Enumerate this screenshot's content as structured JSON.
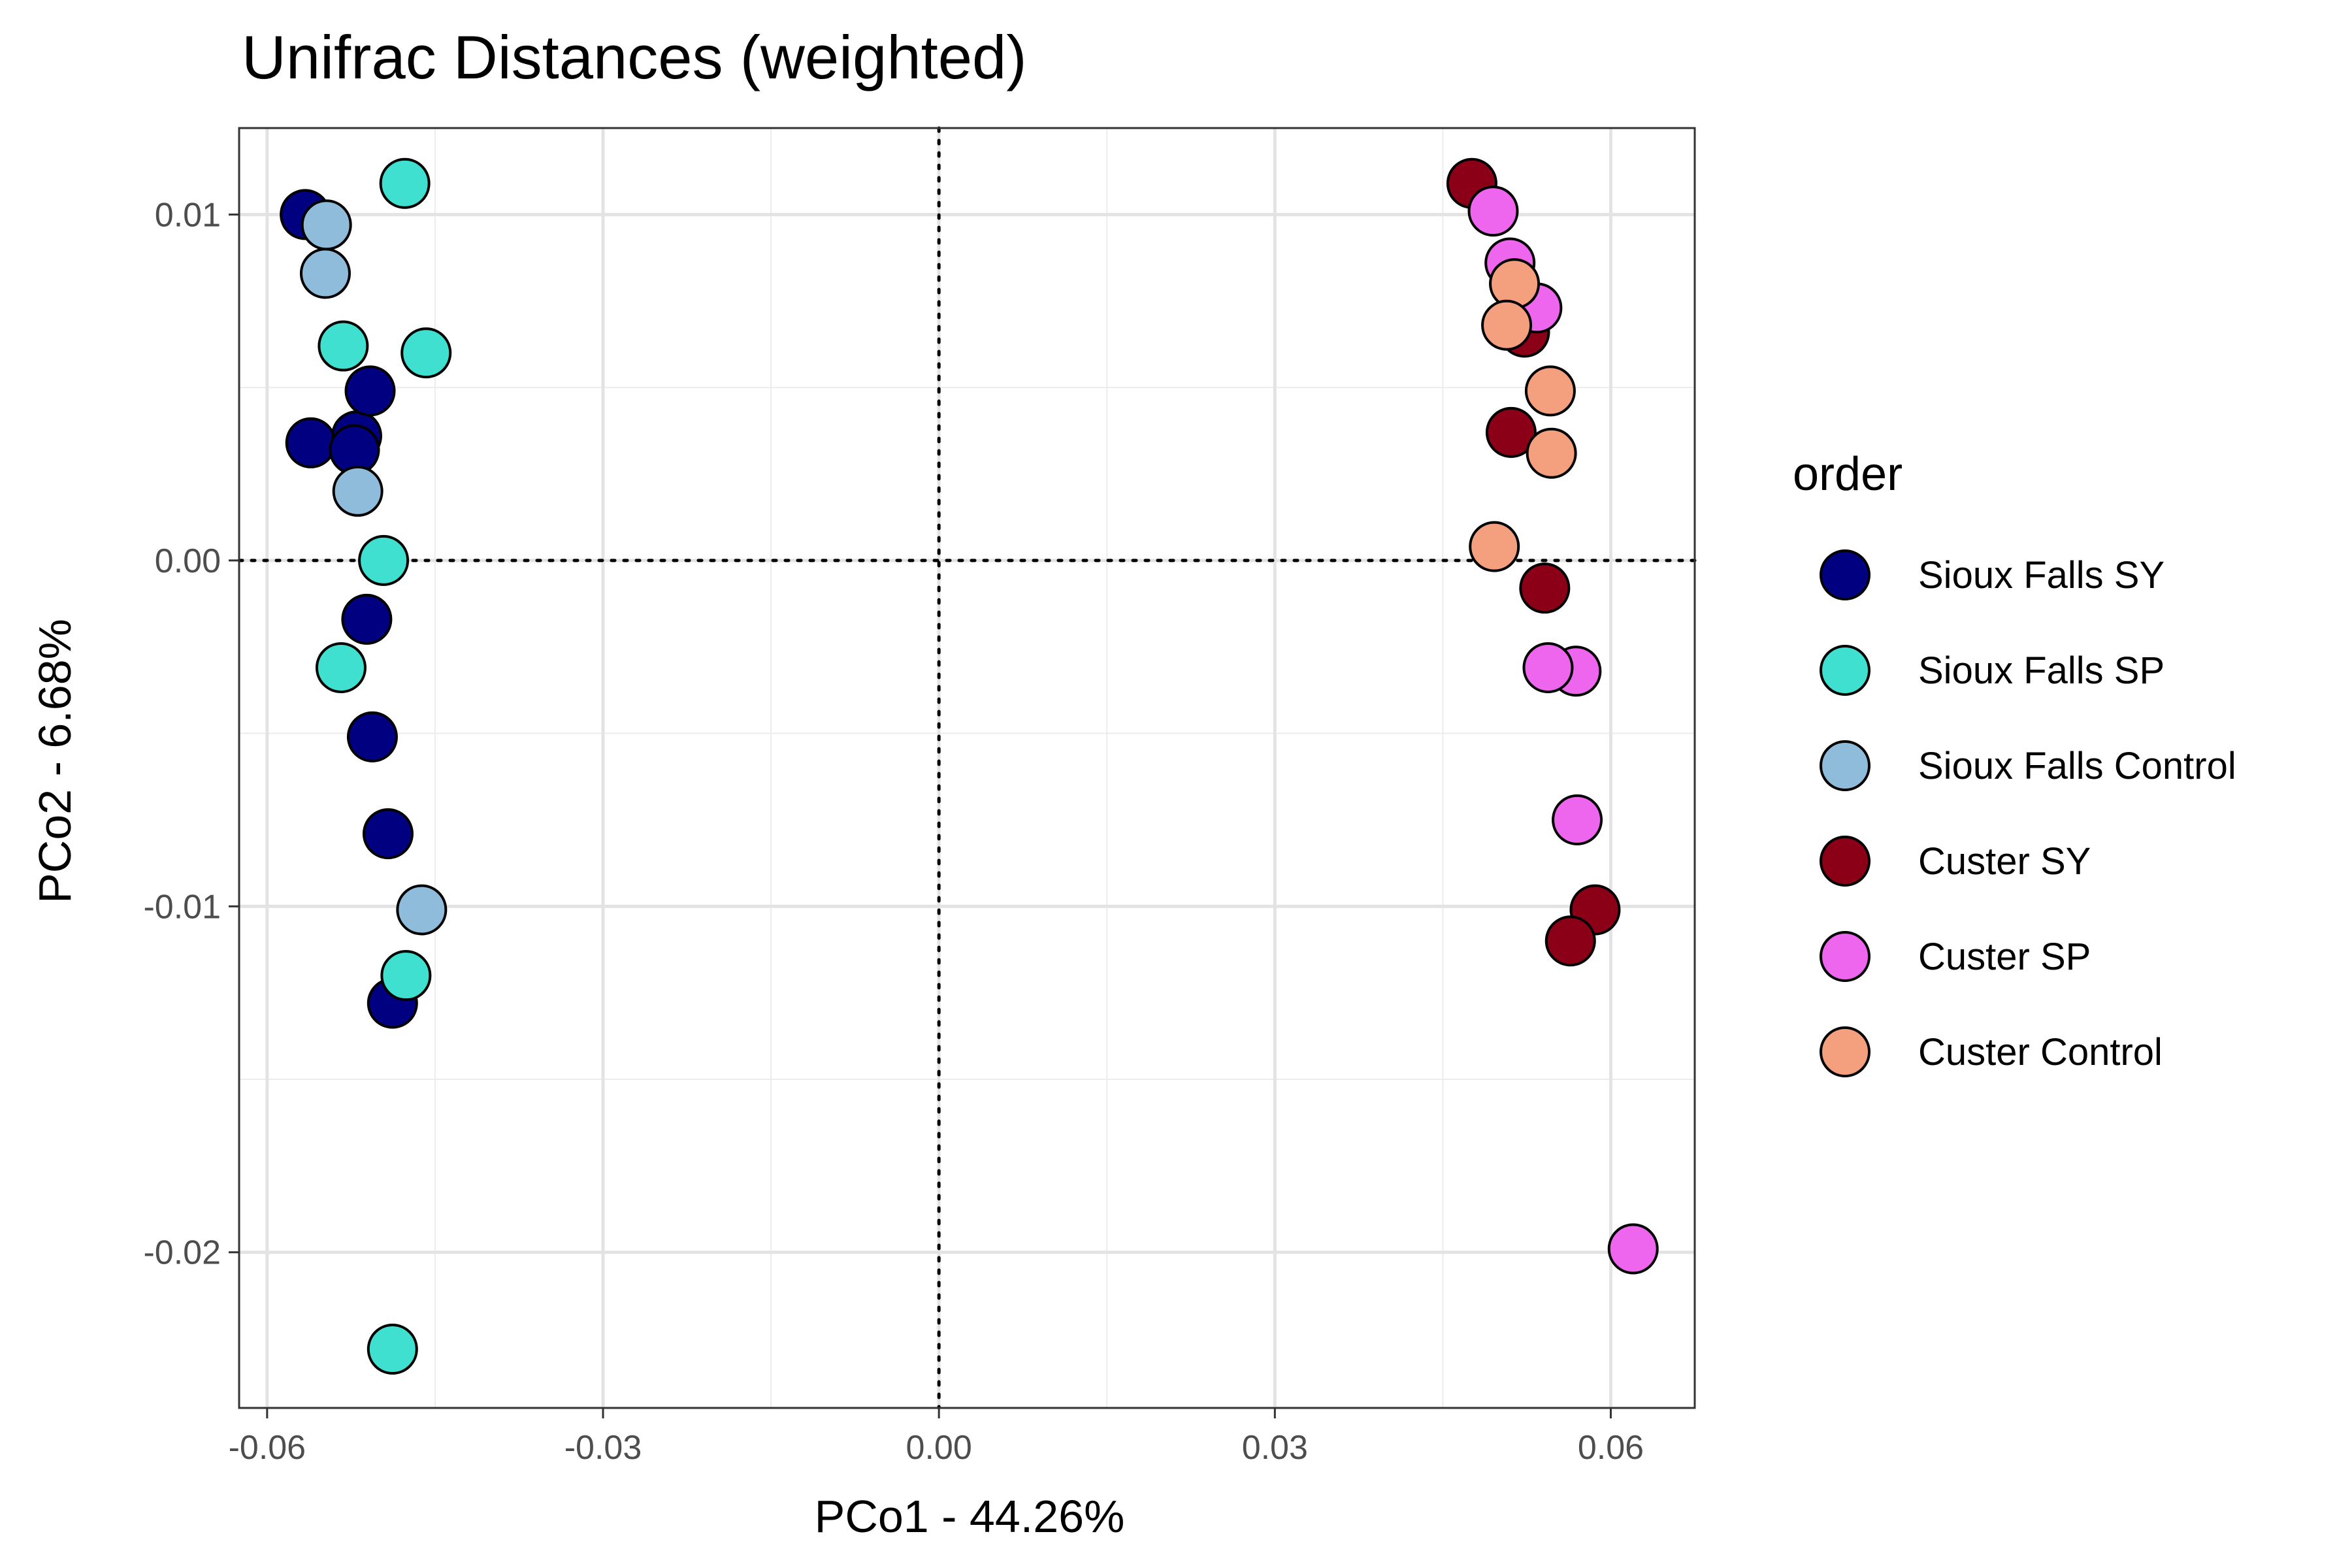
{
  "chart_data": {
    "type": "scatter",
    "title": "Unifrac Distances (weighted)",
    "xlabel": "PCo1 - 44.26%",
    "ylabel": "PCo2 - 6.68%",
    "xlim": [
      -0.0625,
      0.0675
    ],
    "ylim": [
      -0.0245,
      0.0125
    ],
    "x_ticks": [
      -0.06,
      -0.03,
      0.0,
      0.03,
      0.06
    ],
    "x_tick_labels": [
      "-0.06",
      "-0.03",
      "0.00",
      "0.03",
      "0.06"
    ],
    "y_ticks": [
      -0.02,
      -0.01,
      0.0,
      0.01
    ],
    "y_tick_labels": [
      "-0.02",
      "-0.01",
      "0.00",
      "0.01"
    ],
    "grid": true,
    "reference_lines": {
      "x": 0,
      "y": 0,
      "style": "dotted"
    },
    "legend": {
      "title": "order",
      "position": "right"
    },
    "series": [
      {
        "name": "Sioux Falls SY",
        "color": "#000080",
        "points": [
          [
            -0.0566,
            0.01
          ],
          [
            -0.0561,
            0.0034
          ],
          [
            -0.052,
            0.0036
          ],
          [
            -0.0522,
            0.0032
          ],
          [
            -0.0508,
            0.0049
          ],
          [
            -0.0511,
            -0.0017
          ],
          [
            -0.0506,
            -0.0051
          ],
          [
            -0.0492,
            -0.0079
          ],
          [
            -0.0488,
            -0.0128
          ]
        ]
      },
      {
        "name": "Sioux Falls SP",
        "color": "#40E0D0",
        "points": [
          [
            -0.0477,
            0.0109
          ],
          [
            -0.0532,
            0.0062
          ],
          [
            -0.0458,
            0.006
          ],
          [
            -0.0496,
            0.0
          ],
          [
            -0.0534,
            -0.0031
          ],
          [
            -0.0476,
            -0.012
          ],
          [
            -0.0488,
            -0.0228
          ]
        ]
      },
      {
        "name": "Sioux Falls Control",
        "color": "#8FBCDB",
        "points": [
          [
            -0.0547,
            0.0097
          ],
          [
            -0.0548,
            0.0083
          ],
          [
            -0.0519,
            0.002
          ],
          [
            -0.0462,
            -0.0101
          ]
        ]
      },
      {
        "name": "Custer SY",
        "color": "#8B0016",
        "points": [
          [
            0.0476,
            0.0109
          ],
          [
            0.0523,
            0.0066
          ],
          [
            0.0511,
            0.0037
          ],
          [
            0.0541,
            -0.0008
          ],
          [
            0.0586,
            -0.0101
          ],
          [
            0.0564,
            -0.011
          ]
        ]
      },
      {
        "name": "Custer SP",
        "color": "#EE66EE",
        "points": [
          [
            0.0495,
            0.0101
          ],
          [
            0.051,
            0.0086
          ],
          [
            0.0534,
            0.0073
          ],
          [
            0.0569,
            -0.0032
          ],
          [
            0.0544,
            -0.0031
          ],
          [
            0.057,
            -0.0075
          ],
          [
            0.062,
            -0.0199
          ]
        ]
      },
      {
        "name": "Custer Control",
        "color": "#F4A07F",
        "points": [
          [
            0.0514,
            0.008
          ],
          [
            0.0507,
            0.0068
          ],
          [
            0.0546,
            0.0049
          ],
          [
            0.0547,
            0.0031
          ],
          [
            0.0496,
            0.0004
          ]
        ]
      }
    ]
  }
}
